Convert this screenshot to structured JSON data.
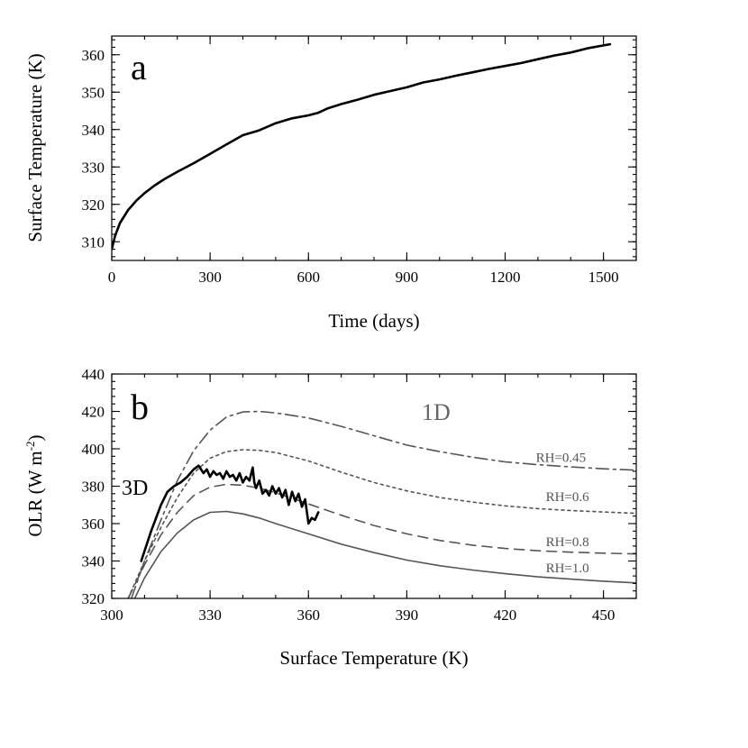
{
  "chart_data": [
    {
      "type": "line",
      "panel_label": "a",
      "xlabel": "Time (days)",
      "ylabel": "Surface Temperature (K)",
      "xlim": [
        0,
        1600
      ],
      "ylim": [
        305,
        365
      ],
      "xticks": [
        0,
        300,
        600,
        900,
        1200,
        1500
      ],
      "xtick_labels": [
        "0",
        "300",
        "600",
        "900",
        "1200",
        "1500"
      ],
      "yticks": [
        310,
        320,
        330,
        340,
        350,
        360
      ],
      "ytick_labels": [
        "310",
        "320",
        "330",
        "340",
        "350",
        "360"
      ],
      "series": [
        {
          "name": "surface temperature",
          "color": "#000000",
          "x": [
            0,
            10,
            25,
            50,
            75,
            100,
            130,
            160,
            200,
            250,
            300,
            350,
            400,
            420,
            450,
            500,
            550,
            600,
            630,
            660,
            700,
            750,
            800,
            850,
            900,
            950,
            1000,
            1050,
            1100,
            1150,
            1200,
            1250,
            1300,
            1350,
            1400,
            1450,
            1500,
            1520
          ],
          "y": [
            308,
            311.5,
            315,
            318.5,
            321,
            323,
            325,
            326.7,
            328.7,
            331,
            333.5,
            336,
            338.5,
            339,
            339.8,
            341.7,
            343,
            343.8,
            344.5,
            345.7,
            346.8,
            348,
            349.3,
            350.3,
            351.3,
            352.6,
            353.4,
            354.4,
            355.3,
            356.2,
            357,
            357.8,
            358.8,
            359.8,
            360.6,
            361.7,
            362.5,
            362.8
          ]
        }
      ]
    },
    {
      "type": "line",
      "panel_label": "b",
      "xlabel": "Surface Temperature (K)",
      "ylabel_main": "OLR (W m",
      "ylabel_sup": "-2",
      "ylabel_end": ")",
      "xlim": [
        300,
        460
      ],
      "ylim": [
        320,
        440
      ],
      "xticks": [
        300,
        330,
        360,
        390,
        420,
        450
      ],
      "xtick_labels": [
        "300",
        "330",
        "360",
        "390",
        "420",
        "450"
      ],
      "yticks": [
        320,
        340,
        360,
        380,
        400,
        420,
        440
      ],
      "ytick_labels": [
        "320",
        "340",
        "360",
        "380",
        "400",
        "420",
        "440"
      ],
      "annotations": {
        "label_1d": "1D",
        "label_3d": "3D"
      },
      "series": [
        {
          "name": "RH=0.45",
          "label": "RH=0.45",
          "style": "dash-dot",
          "color": "#555555",
          "label_at": [
            437,
            393
          ],
          "x": [
            306,
            310,
            315,
            320,
            325,
            330,
            335,
            340,
            345,
            350,
            360,
            370,
            380,
            390,
            400,
            410,
            420,
            430,
            440,
            450,
            460
          ],
          "y": [
            320,
            340,
            362,
            383,
            399,
            410,
            417,
            419.7,
            420,
            419.2,
            416.5,
            412,
            407,
            402,
            398.5,
            395.5,
            393,
            391.5,
            390.3,
            389.3,
            388.6
          ]
        },
        {
          "name": "RH=0.6",
          "label": "RH=0.6",
          "style": "dotted",
          "color": "#555555",
          "label_at": [
            439,
            372
          ],
          "x": [
            305,
            310,
            315,
            320,
            325,
            330,
            335,
            340,
            345,
            350,
            360,
            370,
            380,
            390,
            400,
            410,
            420,
            430,
            440,
            450,
            460
          ],
          "y": [
            320,
            340,
            358,
            374,
            387,
            395,
            398.5,
            399.5,
            399.2,
            398,
            393.5,
            387.5,
            382,
            377.5,
            374,
            371.5,
            369.5,
            368,
            367,
            366.2,
            365.5
          ]
        },
        {
          "name": "RH=0.8",
          "label": "RH=0.8",
          "style": "dashed",
          "color": "#555555",
          "label_at": [
            439,
            348
          ],
          "x": [
            305,
            310,
            315,
            320,
            325,
            330,
            335,
            340,
            345,
            350,
            360,
            370,
            380,
            390,
            400,
            410,
            420,
            430,
            440,
            450,
            460
          ],
          "y": [
            320,
            338,
            354,
            366,
            375,
            379.5,
            381,
            380.5,
            379,
            376.5,
            370.5,
            364.5,
            359,
            354.5,
            351,
            348.5,
            346.7,
            345.5,
            344.7,
            344.2,
            343.8
          ]
        },
        {
          "name": "RH=1.0",
          "label": "RH=1.0",
          "style": "solid",
          "color": "#555555",
          "label_at": [
            439,
            334
          ],
          "x": [
            307,
            310,
            315,
            320,
            325,
            330,
            335,
            340,
            345,
            350,
            360,
            370,
            380,
            390,
            400,
            410,
            420,
            430,
            440,
            450,
            460
          ],
          "y": [
            320,
            331,
            345,
            355,
            362,
            366,
            366.5,
            365.2,
            363,
            360,
            354.5,
            349,
            344.5,
            340.5,
            337.5,
            335.2,
            333.2,
            331.5,
            330.3,
            329.2,
            328.3
          ]
        },
        {
          "name": "3D",
          "style": "solid-thick",
          "color": "#000000",
          "x": [
            309,
            312,
            315,
            317,
            319,
            321,
            323,
            325,
            326.5,
            328,
            329,
            330,
            331,
            332,
            333,
            334,
            335,
            336,
            337,
            338,
            339,
            340,
            341,
            342,
            343,
            343.5,
            344,
            345,
            346,
            347,
            348,
            349,
            350,
            351,
            352,
            353,
            354,
            355,
            356,
            357,
            358,
            359,
            360,
            361,
            362,
            363
          ],
          "y": [
            340,
            356,
            370,
            377,
            380,
            382,
            385,
            389,
            391,
            387,
            389,
            385,
            388,
            386,
            387,
            384,
            388,
            385,
            386,
            383,
            387,
            382,
            385,
            383,
            390,
            382,
            379,
            383,
            376,
            378,
            375,
            380,
            376,
            379,
            374,
            378,
            370,
            377,
            372,
            376,
            369,
            373,
            360,
            363,
            362,
            366
          ]
        }
      ]
    }
  ]
}
